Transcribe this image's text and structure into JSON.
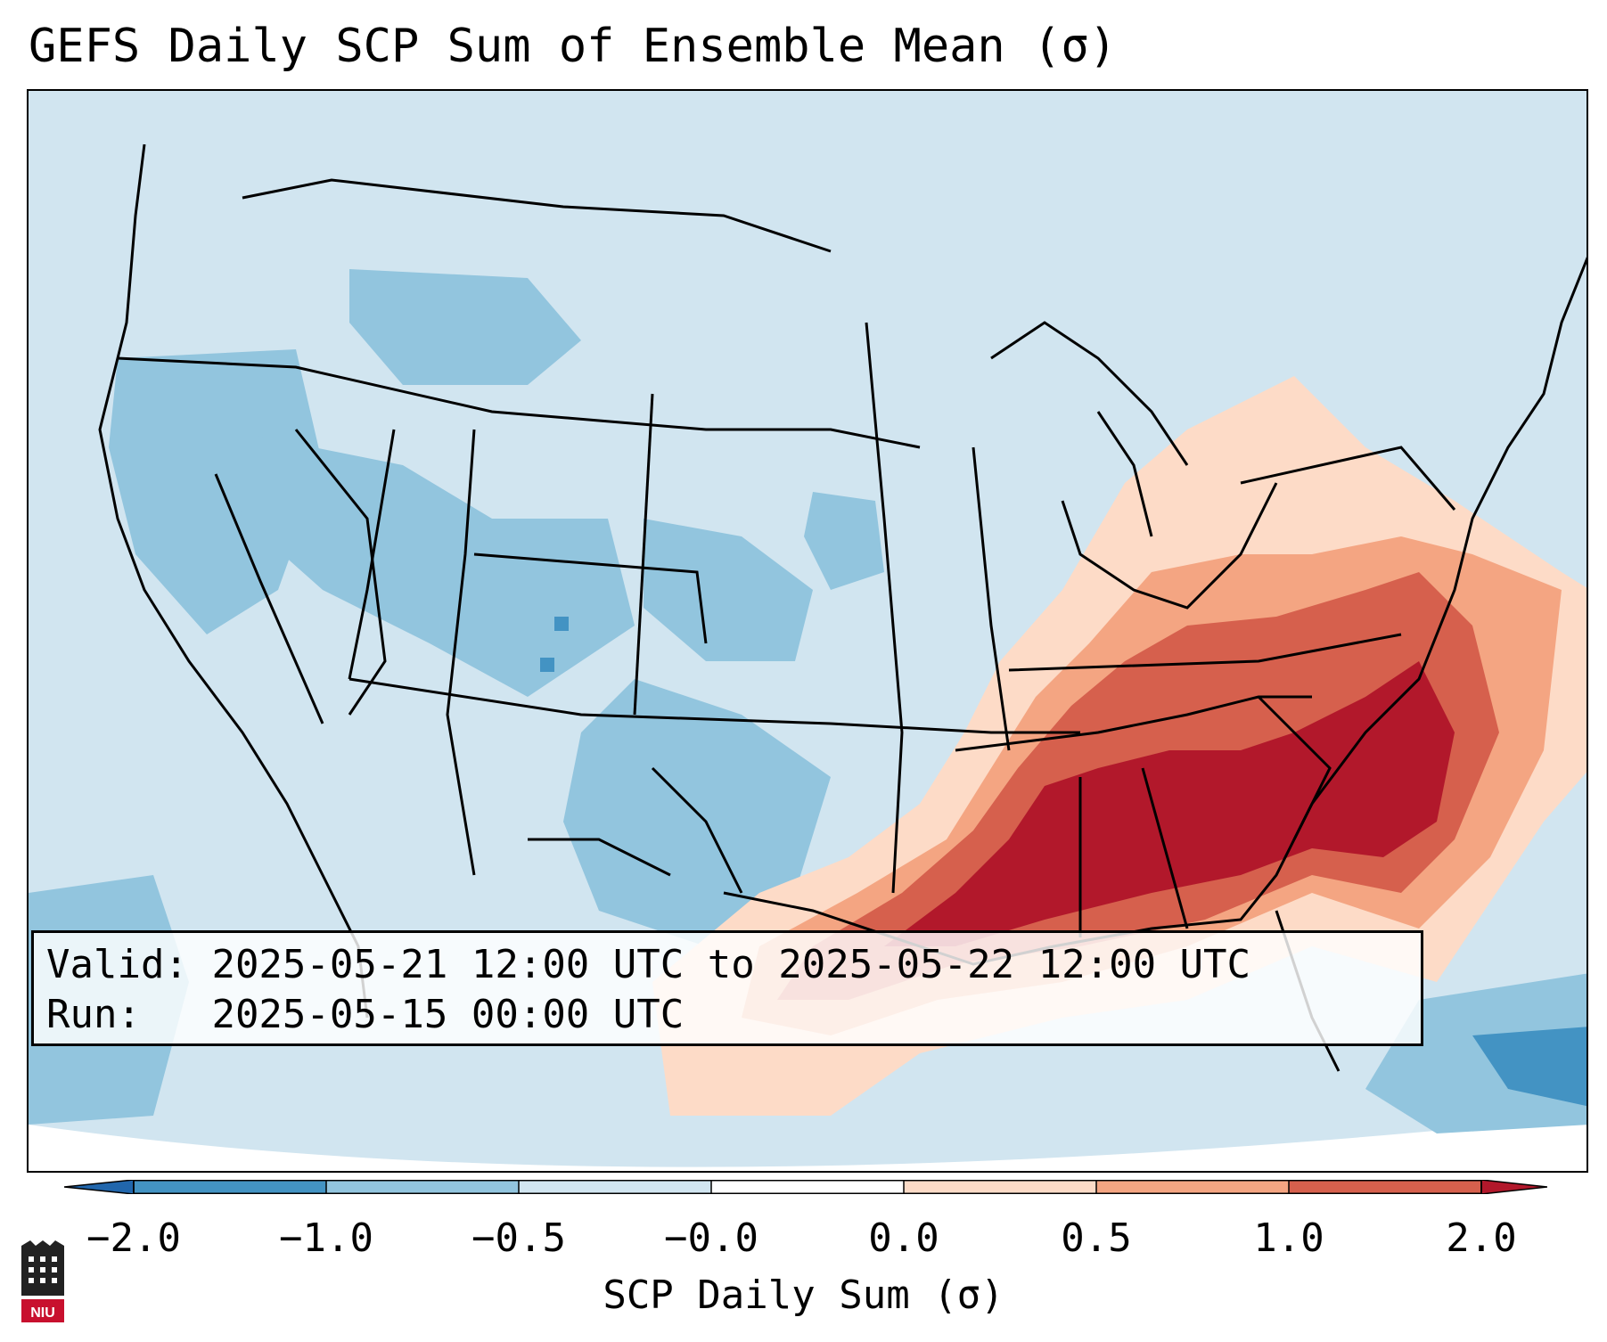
{
  "title": "GEFS Daily SCP Sum of Ensemble Mean (σ)",
  "info": {
    "valid_label": "Valid:",
    "valid_value": "2025-05-21 12:00 UTC to 2025-05-22 12:00 UTC",
    "run_label": "Run:",
    "run_value": "2025-05-15 00:00 UTC"
  },
  "colorbar": {
    "label": "SCP Daily Sum (σ)",
    "ticks": [
      "−2.0",
      "−1.0",
      "−0.5",
      "−0.0",
      "0.0",
      "0.5",
      "1.0",
      "2.0"
    ],
    "colors": [
      "#4393c3",
      "#92c5de",
      "#d1e5f0",
      "#ffffff",
      "#fddbc7",
      "#f4a582",
      "#d6604d",
      "#b2182b"
    ],
    "extend_low_color": "#2166ac",
    "extend_high_color": "#b2182b"
  },
  "map": {
    "background_color": "#d1e5f0",
    "legend_classes": [
      {
        "range": "< -2.0",
        "color": "#2166ac"
      },
      {
        "range": "-2.0 to -1.0",
        "color": "#4393c3"
      },
      {
        "range": "-1.0 to -0.5",
        "color": "#92c5de"
      },
      {
        "range": "-0.5 to 0.0",
        "color": "#d1e5f0"
      },
      {
        "range": "0.0 to 0.5",
        "color": "#fddbc7"
      },
      {
        "range": "0.5 to 1.0",
        "color": "#f4a582"
      },
      {
        "range": "1.0 to 2.0",
        "color": "#d6604d"
      },
      {
        "range": "> 2.0",
        "color": "#b2182b"
      }
    ]
  },
  "logo": {
    "text": "NIU",
    "icon": "niu-logo-icon"
  }
}
